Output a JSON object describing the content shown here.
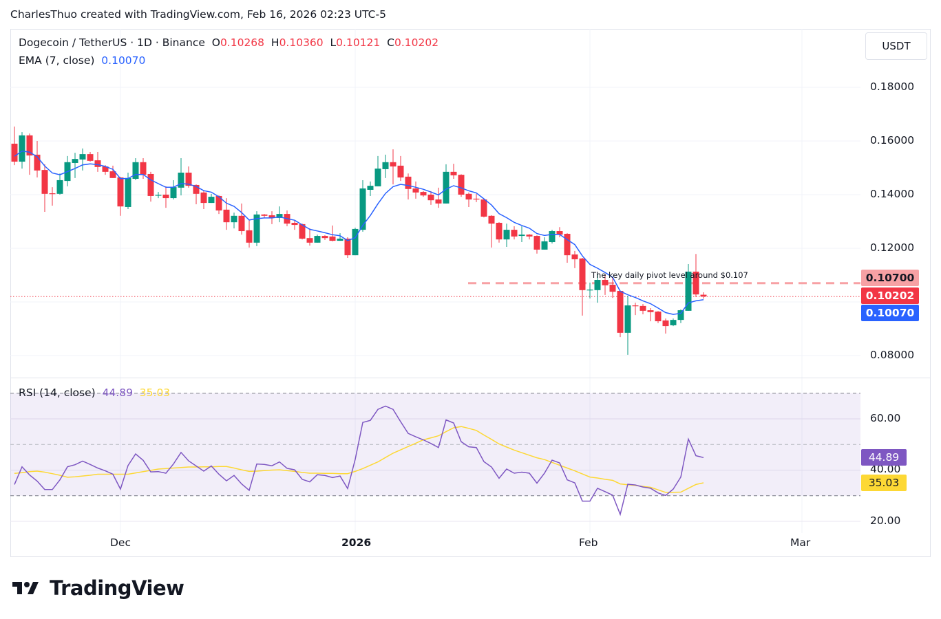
{
  "credit": "CharlesThuo created with TradingView.com, Feb 16, 2026 02:23 UTC-5",
  "legend": {
    "symbol": "Dogecoin / TetherUS · 1D · Binance",
    "o_label": "O",
    "o": "0.10268",
    "h_label": "H",
    "h": "0.10360",
    "l_label": "L",
    "l": "0.10121",
    "c_label": "C",
    "c": "0.10202",
    "ema_label": "EMA (7, close)",
    "ema": "0.10070",
    "rsi_label": "RSI (14, close)",
    "rsi": "44.89",
    "rsi_ma": "35.03"
  },
  "currency": "USDT",
  "annotation": "The key daily pivot level around $0.107",
  "price_labels": {
    "pivot": "0.10700",
    "last": "0.10202",
    "ema": "0.10070"
  },
  "rsi_labels": {
    "rsi": "44.89",
    "ma": "35.03"
  },
  "logo": "TradingView",
  "colors": {
    "up": "#089981",
    "down": "#f23645",
    "ema": "#2962ff",
    "rsi": "#7e57c2",
    "rsi_ma": "#fdd835",
    "pivot": "#f7a1a4",
    "last": "#f23645"
  },
  "chart_data": [
    {
      "type": "candlestick",
      "y_ticks": [
        "0.18000",
        "0.16000",
        "0.14000",
        "0.12000",
        "0.08000"
      ],
      "y_tick_values": [
        0.18,
        0.16,
        0.14,
        0.12,
        0.08
      ],
      "ylim": [
        0.0665,
        0.1965
      ],
      "x_ticks": [
        {
          "label": "Dec",
          "date": "2025-12-01"
        },
        {
          "label": "2026",
          "date": "2026-01-01"
        },
        {
          "label": "Feb",
          "date": "2026-02-01"
        },
        {
          "label": "Mar",
          "date": "2026-03-01"
        }
      ],
      "grid": true,
      "horizontal_lines": [
        {
          "value": 0.107,
          "style": "dashed",
          "color": "#f7a1a4"
        },
        {
          "value": 0.10202,
          "style": "dotted",
          "color": "#f23645"
        }
      ],
      "ema_period": 7,
      "columns": [
        "date",
        "open",
        "high",
        "low",
        "close"
      ],
      "candles": [
        [
          "2025-11-17",
          0.159,
          0.1654,
          0.151,
          0.1523
        ],
        [
          "2025-11-18",
          0.1523,
          0.1633,
          0.1497,
          0.1621
        ],
        [
          "2025-11-19",
          0.1621,
          0.1628,
          0.1474,
          0.1546
        ],
        [
          "2025-11-20",
          0.1549,
          0.16,
          0.1464,
          0.149
        ],
        [
          "2025-11-21",
          0.1492,
          0.1513,
          0.1336,
          0.1403
        ],
        [
          "2025-11-22",
          0.1405,
          0.1428,
          0.1359,
          0.1403
        ],
        [
          "2025-11-23",
          0.1403,
          0.1479,
          0.14,
          0.1454
        ],
        [
          "2025-11-24",
          0.1451,
          0.1544,
          0.1431,
          0.1521
        ],
        [
          "2025-11-25",
          0.1518,
          0.1556,
          0.1462,
          0.1533
        ],
        [
          "2025-11-26",
          0.1531,
          0.1572,
          0.149,
          0.1551
        ],
        [
          "2025-11-27",
          0.1551,
          0.1559,
          0.1523,
          0.1526
        ],
        [
          "2025-11-28",
          0.1528,
          0.1559,
          0.1485,
          0.1503
        ],
        [
          "2025-11-29",
          0.1505,
          0.151,
          0.1474,
          0.1485
        ],
        [
          "2025-11-30",
          0.1487,
          0.1508,
          0.1462,
          0.1462
        ],
        [
          "2025-12-01",
          0.1464,
          0.1466,
          0.1321,
          0.1356
        ],
        [
          "2025-12-02",
          0.1354,
          0.1482,
          0.1346,
          0.1462
        ],
        [
          "2025-12-03",
          0.1459,
          0.1536,
          0.1454,
          0.1521
        ],
        [
          "2025-12-04",
          0.1521,
          0.1536,
          0.1459,
          0.1474
        ],
        [
          "2025-12-05",
          0.1477,
          0.1485,
          0.1374,
          0.1395
        ],
        [
          "2025-12-06",
          0.1397,
          0.141,
          0.1387,
          0.1399
        ],
        [
          "2025-12-07",
          0.14,
          0.1431,
          0.1351,
          0.1387
        ],
        [
          "2025-12-08",
          0.1387,
          0.1454,
          0.1382,
          0.1428
        ],
        [
          "2025-12-09",
          0.1426,
          0.1536,
          0.1397,
          0.1482
        ],
        [
          "2025-12-10",
          0.1482,
          0.1505,
          0.1426,
          0.1433
        ],
        [
          "2025-12-11",
          0.1436,
          0.1438,
          0.1364,
          0.1403
        ],
        [
          "2025-12-12",
          0.1408,
          0.1415,
          0.1346,
          0.1369
        ],
        [
          "2025-12-13",
          0.1369,
          0.1403,
          0.1369,
          0.1392
        ],
        [
          "2025-12-14",
          0.1395,
          0.1397,
          0.1328,
          0.1341
        ],
        [
          "2025-12-15",
          0.1344,
          0.1387,
          0.1269,
          0.1297
        ],
        [
          "2025-12-16",
          0.1297,
          0.1333,
          0.1274,
          0.1321
        ],
        [
          "2025-12-17",
          0.1321,
          0.1367,
          0.1251,
          0.1264
        ],
        [
          "2025-12-18",
          0.1267,
          0.1305,
          0.1203,
          0.1221
        ],
        [
          "2025-12-19",
          0.1221,
          0.1338,
          0.1208,
          0.1326
        ],
        [
          "2025-12-20",
          0.1326,
          0.1328,
          0.1313,
          0.1321
        ],
        [
          "2025-12-21",
          0.1323,
          0.1338,
          0.129,
          0.1313
        ],
        [
          "2025-12-22",
          0.1313,
          0.1356,
          0.1297,
          0.1328
        ],
        [
          "2025-12-23",
          0.1328,
          0.1341,
          0.1282,
          0.1292
        ],
        [
          "2025-12-24",
          0.1295,
          0.1305,
          0.1269,
          0.1287
        ],
        [
          "2025-12-25",
          0.129,
          0.1292,
          0.1233,
          0.1236
        ],
        [
          "2025-12-26",
          0.1238,
          0.1274,
          0.121,
          0.1221
        ],
        [
          "2025-12-27",
          0.1221,
          0.1251,
          0.1221,
          0.1246
        ],
        [
          "2025-12-28",
          0.1246,
          0.1249,
          0.1231,
          0.1238
        ],
        [
          "2025-12-29",
          0.1244,
          0.1285,
          0.1226,
          0.1228
        ],
        [
          "2025-12-30",
          0.1228,
          0.1256,
          0.1228,
          0.1236
        ],
        [
          "2025-12-31",
          0.1236,
          0.1241,
          0.1164,
          0.1174
        ],
        [
          "2026-01-01",
          0.1174,
          0.1277,
          0.1174,
          0.1272
        ],
        [
          "2026-01-02",
          0.1269,
          0.1454,
          0.1262,
          0.1423
        ],
        [
          "2026-01-03",
          0.1418,
          0.1449,
          0.1395,
          0.1433
        ],
        [
          "2026-01-04",
          0.1431,
          0.1544,
          0.1431,
          0.1497
        ],
        [
          "2026-01-05",
          0.1495,
          0.1549,
          0.1462,
          0.1521
        ],
        [
          "2026-01-06",
          0.1521,
          0.1569,
          0.1438,
          0.1505
        ],
        [
          "2026-01-07",
          0.1508,
          0.1544,
          0.1451,
          0.1464
        ],
        [
          "2026-01-08",
          0.1467,
          0.1479,
          0.1382,
          0.1421
        ],
        [
          "2026-01-09",
          0.1423,
          0.1449,
          0.1385,
          0.1408
        ],
        [
          "2026-01-10",
          0.141,
          0.1413,
          0.1392,
          0.1397
        ],
        [
          "2026-01-11",
          0.14,
          0.1413,
          0.1362,
          0.1379
        ],
        [
          "2026-01-12",
          0.1382,
          0.1426,
          0.1351,
          0.1367
        ],
        [
          "2026-01-13",
          0.1367,
          0.1513,
          0.1367,
          0.1485
        ],
        [
          "2026-01-14",
          0.1485,
          0.1515,
          0.1459,
          0.1472
        ],
        [
          "2026-01-15",
          0.1474,
          0.1476,
          0.1392,
          0.14
        ],
        [
          "2026-01-16",
          0.1403,
          0.1408,
          0.1354,
          0.1382
        ],
        [
          "2026-01-17",
          0.1385,
          0.1403,
          0.1372,
          0.1383
        ],
        [
          "2026-01-18",
          0.1382,
          0.1385,
          0.1315,
          0.1318
        ],
        [
          "2026-01-19",
          0.1321,
          0.1323,
          0.1203,
          0.1292
        ],
        [
          "2026-01-20",
          0.1295,
          0.1297,
          0.1221,
          0.1233
        ],
        [
          "2026-01-21",
          0.1233,
          0.1292,
          0.1205,
          0.1269
        ],
        [
          "2026-01-22",
          0.1269,
          0.1282,
          0.1233,
          0.1244
        ],
        [
          "2026-01-23",
          0.1246,
          0.1282,
          0.1223,
          0.1251
        ],
        [
          "2026-01-24",
          0.1251,
          0.1253,
          0.1233,
          0.1244
        ],
        [
          "2026-01-25",
          0.1246,
          0.1248,
          0.118,
          0.1195
        ],
        [
          "2026-01-26",
          0.1195,
          0.1241,
          0.1195,
          0.1226
        ],
        [
          "2026-01-27",
          0.1223,
          0.1269,
          0.1218,
          0.1264
        ],
        [
          "2026-01-28",
          0.1264,
          0.1279,
          0.1241,
          0.1251
        ],
        [
          "2026-01-29",
          0.1254,
          0.1256,
          0.1146,
          0.1174
        ],
        [
          "2026-01-30",
          0.1177,
          0.119,
          0.1126,
          0.1159
        ],
        [
          "2026-01-31",
          0.1162,
          0.1164,
          0.0949,
          0.1044
        ],
        [
          "2026-02-01",
          0.1044,
          0.1072,
          0.1013,
          0.1046
        ],
        [
          "2026-02-02",
          0.1044,
          0.1105,
          0.0997,
          0.1082
        ],
        [
          "2026-02-03",
          0.1082,
          0.1105,
          0.1026,
          0.1062
        ],
        [
          "2026-02-04",
          0.1064,
          0.109,
          0.1015,
          0.1038
        ],
        [
          "2026-02-05",
          0.1041,
          0.1043,
          0.0869,
          0.0885
        ],
        [
          "2026-02-06",
          0.0885,
          0.1023,
          0.0803,
          0.0987
        ],
        [
          "2026-02-07",
          0.0987,
          0.0997,
          0.0951,
          0.0985
        ],
        [
          "2026-02-08",
          0.0985,
          0.0992,
          0.0954,
          0.0967
        ],
        [
          "2026-02-09",
          0.0969,
          0.0977,
          0.0928,
          0.0962
        ],
        [
          "2026-02-10",
          0.0964,
          0.0966,
          0.0921,
          0.0928
        ],
        [
          "2026-02-11",
          0.0931,
          0.0938,
          0.0882,
          0.091
        ],
        [
          "2026-02-12",
          0.0913,
          0.0938,
          0.091,
          0.0933
        ],
        [
          "2026-02-13",
          0.0933,
          0.0972,
          0.0921,
          0.0969
        ],
        [
          "2026-02-14",
          0.0967,
          0.1141,
          0.0967,
          0.1113
        ],
        [
          "2026-02-15",
          0.1113,
          0.1179,
          0.1018,
          0.1028
        ],
        [
          "2026-02-16",
          0.10268,
          0.1036,
          0.10121,
          0.10202
        ]
      ]
    },
    {
      "type": "line",
      "title": "RSI (14, close)",
      "y_ticks": [
        "60.00",
        "40.00",
        "20.00"
      ],
      "y_tick_values": [
        60,
        40,
        20
      ],
      "bands": [
        70,
        50,
        30
      ],
      "ylim": [
        14,
        80
      ],
      "series": [
        {
          "values": [
            34.4,
            41.3,
            38.1,
            35.7,
            32.4,
            32.4,
            36.2,
            41.3,
            42.1,
            43.5,
            42.2,
            40.8,
            39.7,
            38.4,
            32.6,
            41.8,
            46.3,
            43.8,
            39.3,
            39.4,
            38.8,
            42.4,
            46.9,
            43.6,
            41.6,
            39.6,
            41.6,
            38.4,
            35.8,
            37.9,
            34.6,
            32.1,
            42.4,
            42.2,
            41.7,
            43.2,
            40.7,
            40.1,
            36.4,
            35.4,
            38.2,
            37.9,
            37.1,
            37.7,
            32.8,
            44.2,
            58.6,
            59.4,
            63.7,
            65.0,
            63.7,
            58.9,
            54.3,
            53.0,
            51.8,
            50.4,
            48.8,
            59.6,
            58.4,
            51.1,
            49.1,
            48.8,
            43.3,
            41.2,
            36.8,
            40.4,
            38.8,
            39.2,
            38.8,
            34.9,
            38.8,
            43.9,
            42.8,
            36.2,
            35.0,
            27.9,
            27.9,
            32.9,
            31.6,
            30.2,
            22.7,
            34.5,
            34.2,
            33.4,
            32.9,
            31.1,
            30.1,
            32.6,
            37.3,
            52.1,
            45.6,
            44.89
          ]
        },
        {
          "values": [
            38.7,
            39.0,
            39.4,
            39.6,
            39.2,
            38.6,
            38.0,
            37.2,
            37.4,
            37.7,
            38.0,
            38.4,
            38.4,
            38.4,
            38.4,
            38.4,
            38.9,
            39.4,
            39.9,
            40.4,
            40.6,
            40.8,
            41.0,
            41.2,
            41.2,
            41.3,
            41.3,
            41.4,
            41.4,
            40.8,
            40.1,
            39.5,
            39.6,
            39.8,
            40.0,
            40.1,
            39.8,
            39.5,
            39.1,
            38.8,
            38.8,
            38.7,
            38.7,
            38.6,
            38.6,
            39.5,
            40.6,
            41.9,
            43.2,
            44.9,
            46.6,
            47.9,
            49.2,
            50.5,
            51.8,
            52.6,
            53.4,
            55.0,
            56.5,
            57.0,
            56.3,
            55.5,
            53.7,
            52.0,
            50.2,
            49.0,
            47.8,
            46.8,
            45.8,
            44.8,
            44.1,
            43.0,
            41.9,
            40.8,
            39.7,
            38.5,
            37.3,
            36.9,
            36.4,
            36.0,
            34.6,
            34.3,
            34.0,
            33.6,
            33.3,
            32.3,
            31.3,
            31.3,
            31.4,
            32.9,
            34.4,
            35.03
          ]
        }
      ]
    }
  ]
}
